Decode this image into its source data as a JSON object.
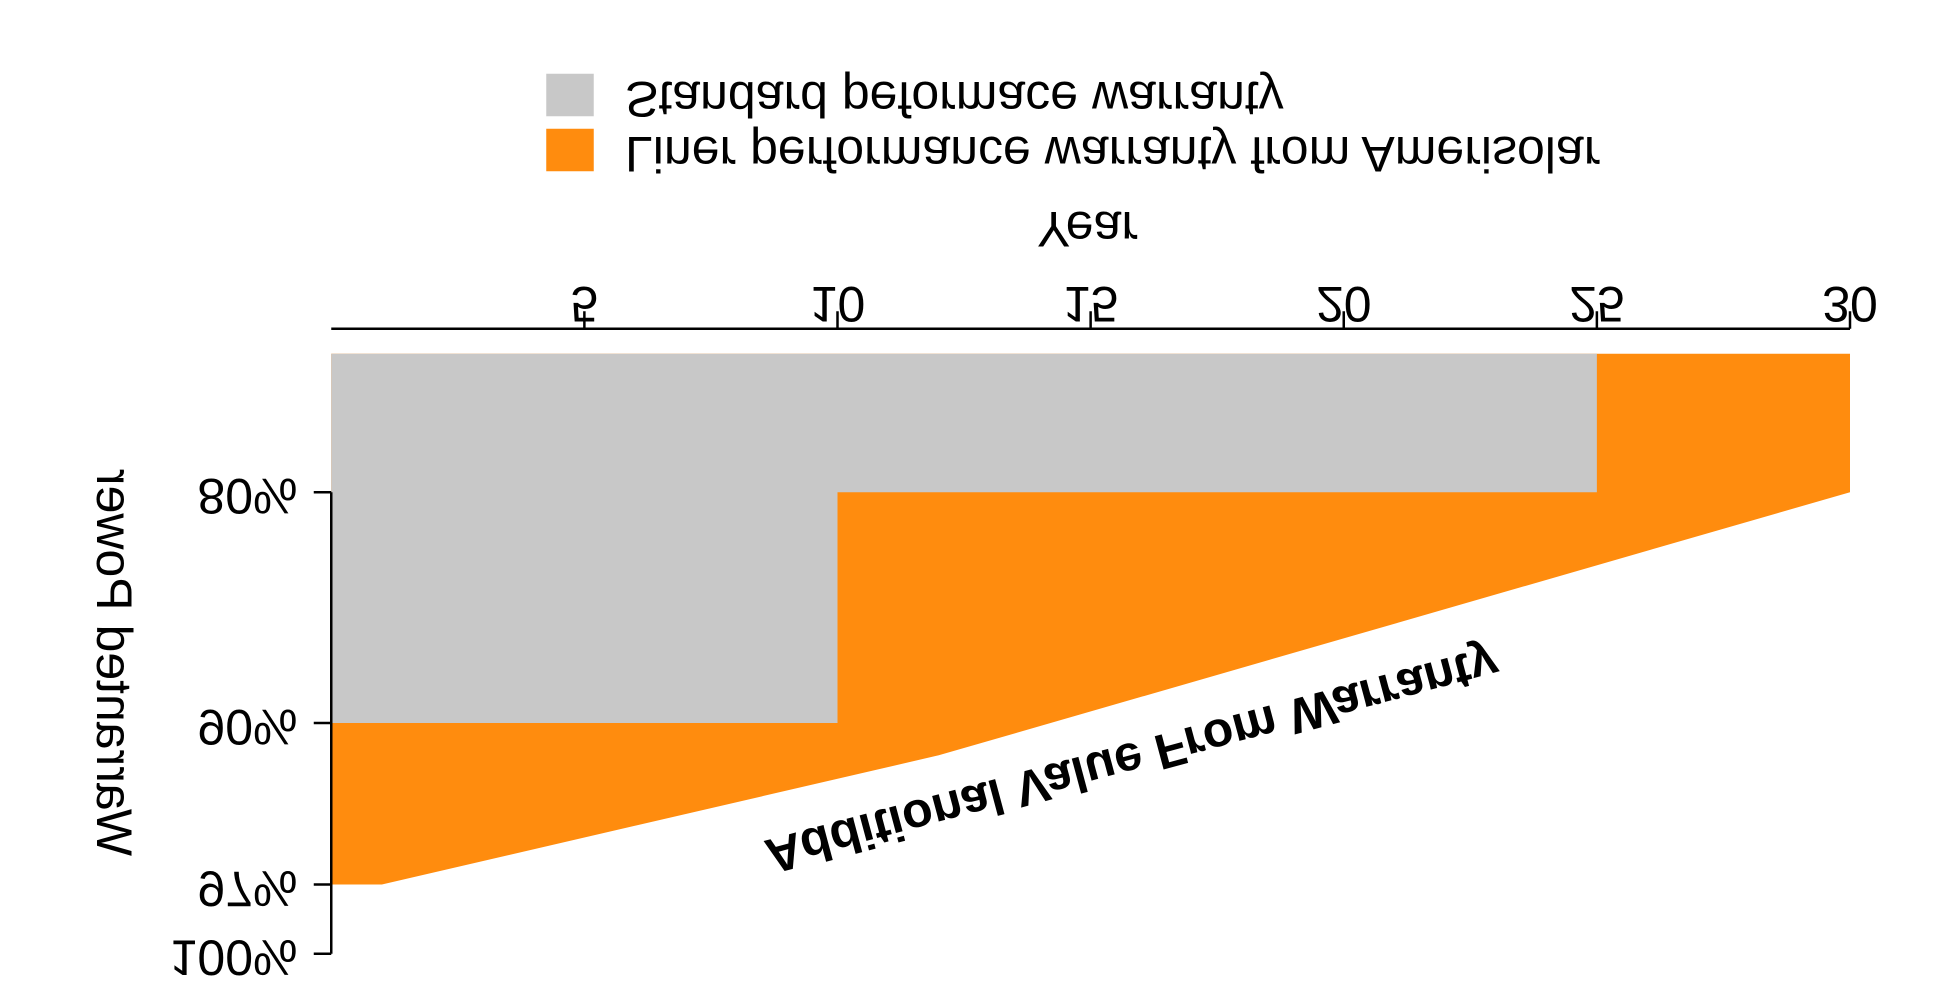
{
  "chart_data": {
    "type": "area",
    "x_label": "Year",
    "y_label": "Warranted Power",
    "annotation": "Additional Value From Warranty",
    "annotation_color": "#ff8c0e",
    "xlim": [
      0,
      30
    ],
    "xticks": [
      5,
      10,
      15,
      20,
      25,
      30
    ],
    "ylim": [
      100,
      74
    ],
    "yticks": [
      {
        "value": 100,
        "label": "100%"
      },
      {
        "value": 97,
        "label": "97%"
      },
      {
        "value": 90,
        "label": "90%"
      },
      {
        "value": 80,
        "label": "80%"
      }
    ],
    "series": [
      {
        "name": "Liner performance warranty from Amerisolar",
        "color": "#ff8c0e",
        "x": [
          0,
          1,
          12,
          30
        ],
        "values": [
          97,
          97,
          91.4,
          80
        ]
      },
      {
        "name": "Standard peformace warranty",
        "color": "#c8c8c8",
        "x": [
          0,
          10,
          10,
          25
        ],
        "values": [
          90,
          90,
          80,
          80
        ]
      }
    ]
  }
}
